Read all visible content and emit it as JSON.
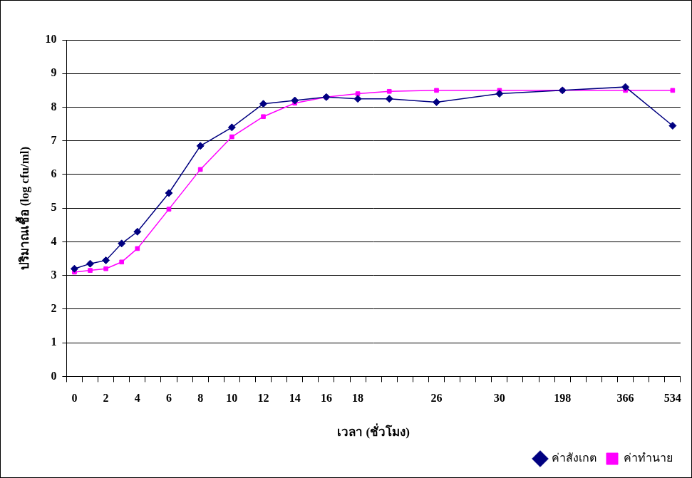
{
  "chart_data": {
    "type": "line",
    "x_label": "เวลา (ชั่วโมง)",
    "y_label": "ปริมาณเชื้อ (log cfu/ml)",
    "categories": [
      "0",
      null,
      "2",
      null,
      "4",
      null,
      "6",
      null,
      "8",
      null,
      "10",
      null,
      "12",
      null,
      "14",
      null,
      "16",
      null,
      "18",
      null,
      null,
      null,
      null,
      "26",
      null,
      null,
      null,
      "30",
      null,
      null,
      null,
      "198",
      null,
      null,
      null,
      "366",
      null,
      null,
      "534"
    ],
    "series": [
      {
        "name": "ค่าสังเกต",
        "color": "#000080",
        "marker": "diamond",
        "values": [
          3.2,
          3.35,
          3.45,
          3.95,
          4.3,
          null,
          5.45,
          null,
          6.85,
          null,
          7.4,
          null,
          8.1,
          null,
          8.2,
          null,
          8.3,
          null,
          8.25,
          null,
          8.25,
          null,
          null,
          8.15,
          null,
          null,
          null,
          8.4,
          null,
          null,
          null,
          8.5,
          null,
          null,
          null,
          8.6,
          null,
          null,
          7.45
        ]
      },
      {
        "name": "ค่าทำนาย",
        "color": "#ff00ff",
        "marker": "square",
        "values": [
          3.1,
          3.15,
          3.2,
          3.4,
          3.8,
          null,
          4.97,
          null,
          6.15,
          null,
          7.12,
          null,
          7.72,
          null,
          8.12,
          null,
          8.3,
          null,
          8.4,
          null,
          8.47,
          null,
          null,
          8.5,
          null,
          null,
          null,
          8.5,
          null,
          null,
          null,
          8.5,
          null,
          null,
          null,
          8.5,
          null,
          null,
          8.5
        ]
      }
    ],
    "ylim": [
      0,
      10
    ],
    "yticks": [
      0,
      1,
      2,
      3,
      4,
      5,
      6,
      7,
      8,
      9,
      10
    ],
    "grid": true,
    "legend": "bottom-right"
  }
}
